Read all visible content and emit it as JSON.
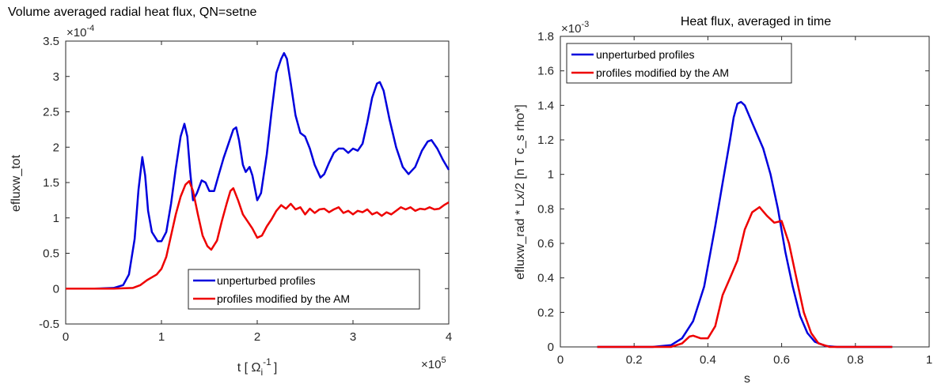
{
  "chart_data": [
    {
      "type": "line",
      "title": "Volume averaged radial heat flux, QN=setne",
      "xlabel": "t [ Ω",
      "xlabel_sub": "i",
      "xlabel_sup": "-1",
      "xlabel_end": "]",
      "ylabel": "efluxw_tot",
      "x_multiplier": {
        "base": "×10",
        "exp": "5"
      },
      "y_multiplier": {
        "base": "×10",
        "exp": "-4"
      },
      "xlim": [
        0,
        4
      ],
      "ylim": [
        -0.5,
        3.5
      ],
      "xticks": [
        0,
        1,
        2,
        3,
        4
      ],
      "xtick_labels": [
        "0",
        "1",
        "2",
        "3",
        "4"
      ],
      "yticks": [
        -0.5,
        0,
        0.5,
        1,
        1.5,
        2,
        2.5,
        3,
        3.5
      ],
      "ytick_labels": [
        "-0.5",
        "0",
        "0.5",
        "1",
        "1.5",
        "2",
        "2.5",
        "3",
        "3.5"
      ],
      "legend_position": "lower-right",
      "series": [
        {
          "name": "unperturbed profiles",
          "color": "#0000dd",
          "points": [
            [
              0,
              0
            ],
            [
              0.3,
              0
            ],
            [
              0.5,
              0.01
            ],
            [
              0.6,
              0.05
            ],
            [
              0.66,
              0.2
            ],
            [
              0.72,
              0.7
            ],
            [
              0.76,
              1.4
            ],
            [
              0.8,
              1.86
            ],
            [
              0.83,
              1.6
            ],
            [
              0.86,
              1.1
            ],
            [
              0.9,
              0.8
            ],
            [
              0.96,
              0.67
            ],
            [
              1.0,
              0.67
            ],
            [
              1.05,
              0.8
            ],
            [
              1.1,
              1.2
            ],
            [
              1.15,
              1.7
            ],
            [
              1.2,
              2.15
            ],
            [
              1.24,
              2.33
            ],
            [
              1.27,
              2.15
            ],
            [
              1.3,
              1.65
            ],
            [
              1.33,
              1.25
            ],
            [
              1.37,
              1.35
            ],
            [
              1.42,
              1.53
            ],
            [
              1.46,
              1.5
            ],
            [
              1.5,
              1.38
            ],
            [
              1.55,
              1.38
            ],
            [
              1.6,
              1.62
            ],
            [
              1.65,
              1.85
            ],
            [
              1.7,
              2.05
            ],
            [
              1.75,
              2.25
            ],
            [
              1.78,
              2.28
            ],
            [
              1.81,
              2.1
            ],
            [
              1.85,
              1.75
            ],
            [
              1.88,
              1.65
            ],
            [
              1.92,
              1.72
            ],
            [
              1.95,
              1.6
            ],
            [
              2.0,
              1.25
            ],
            [
              2.04,
              1.35
            ],
            [
              2.1,
              1.9
            ],
            [
              2.15,
              2.5
            ],
            [
              2.2,
              3.05
            ],
            [
              2.25,
              3.25
            ],
            [
              2.28,
              3.33
            ],
            [
              2.31,
              3.25
            ],
            [
              2.35,
              2.9
            ],
            [
              2.4,
              2.45
            ],
            [
              2.45,
              2.2
            ],
            [
              2.5,
              2.15
            ],
            [
              2.55,
              1.98
            ],
            [
              2.6,
              1.75
            ],
            [
              2.66,
              1.57
            ],
            [
              2.7,
              1.62
            ],
            [
              2.75,
              1.78
            ],
            [
              2.8,
              1.92
            ],
            [
              2.85,
              1.98
            ],
            [
              2.9,
              1.98
            ],
            [
              2.95,
              1.92
            ],
            [
              3.0,
              1.98
            ],
            [
              3.05,
              1.95
            ],
            [
              3.1,
              2.05
            ],
            [
              3.15,
              2.35
            ],
            [
              3.2,
              2.7
            ],
            [
              3.25,
              2.9
            ],
            [
              3.28,
              2.92
            ],
            [
              3.32,
              2.8
            ],
            [
              3.38,
              2.4
            ],
            [
              3.45,
              2.0
            ],
            [
              3.52,
              1.72
            ],
            [
              3.58,
              1.62
            ],
            [
              3.65,
              1.72
            ],
            [
              3.72,
              1.95
            ],
            [
              3.78,
              2.08
            ],
            [
              3.82,
              2.1
            ],
            [
              3.88,
              1.98
            ],
            [
              3.94,
              1.82
            ],
            [
              4.0,
              1.68
            ]
          ]
        },
        {
          "name": "profiles modified by the AM",
          "color": "#ee0000",
          "points": [
            [
              0,
              0
            ],
            [
              0.5,
              0
            ],
            [
              0.7,
              0.01
            ],
            [
              0.78,
              0.05
            ],
            [
              0.85,
              0.12
            ],
            [
              0.9,
              0.16
            ],
            [
              0.95,
              0.2
            ],
            [
              1.0,
              0.28
            ],
            [
              1.05,
              0.45
            ],
            [
              1.1,
              0.75
            ],
            [
              1.15,
              1.05
            ],
            [
              1.2,
              1.3
            ],
            [
              1.25,
              1.47
            ],
            [
              1.29,
              1.52
            ],
            [
              1.33,
              1.38
            ],
            [
              1.38,
              1.05
            ],
            [
              1.43,
              0.75
            ],
            [
              1.48,
              0.6
            ],
            [
              1.52,
              0.55
            ],
            [
              1.58,
              0.68
            ],
            [
              1.63,
              0.95
            ],
            [
              1.68,
              1.2
            ],
            [
              1.72,
              1.38
            ],
            [
              1.75,
              1.42
            ],
            [
              1.8,
              1.25
            ],
            [
              1.85,
              1.05
            ],
            [
              1.9,
              0.95
            ],
            [
              1.95,
              0.85
            ],
            [
              2.0,
              0.72
            ],
            [
              2.05,
              0.75
            ],
            [
              2.1,
              0.88
            ],
            [
              2.15,
              0.98
            ],
            [
              2.2,
              1.1
            ],
            [
              2.25,
              1.18
            ],
            [
              2.3,
              1.13
            ],
            [
              2.35,
              1.2
            ],
            [
              2.4,
              1.12
            ],
            [
              2.45,
              1.15
            ],
            [
              2.5,
              1.05
            ],
            [
              2.55,
              1.13
            ],
            [
              2.6,
              1.07
            ],
            [
              2.65,
              1.12
            ],
            [
              2.7,
              1.13
            ],
            [
              2.75,
              1.08
            ],
            [
              2.8,
              1.12
            ],
            [
              2.85,
              1.15
            ],
            [
              2.9,
              1.07
            ],
            [
              2.95,
              1.1
            ],
            [
              3.0,
              1.05
            ],
            [
              3.05,
              1.1
            ],
            [
              3.1,
              1.08
            ],
            [
              3.15,
              1.12
            ],
            [
              3.2,
              1.05
            ],
            [
              3.25,
              1.08
            ],
            [
              3.3,
              1.03
            ],
            [
              3.35,
              1.08
            ],
            [
              3.4,
              1.05
            ],
            [
              3.45,
              1.1
            ],
            [
              3.5,
              1.15
            ],
            [
              3.55,
              1.12
            ],
            [
              3.6,
              1.15
            ],
            [
              3.65,
              1.1
            ],
            [
              3.7,
              1.13
            ],
            [
              3.75,
              1.12
            ],
            [
              3.8,
              1.15
            ],
            [
              3.85,
              1.12
            ],
            [
              3.9,
              1.13
            ],
            [
              3.95,
              1.18
            ],
            [
              4.0,
              1.22
            ]
          ]
        }
      ]
    },
    {
      "type": "line",
      "title": "Heat flux, averaged in time",
      "xlabel": "s",
      "ylabel": "efluxw_rad * Lx/2 [n T c_s rho*]",
      "y_multiplier": {
        "base": "×10",
        "exp": "-3"
      },
      "xlim": [
        0,
        1
      ],
      "ylim": [
        0,
        1.8
      ],
      "xticks": [
        0,
        0.2,
        0.4,
        0.6,
        0.8,
        1
      ],
      "xtick_labels": [
        "0",
        "0.2",
        "0.4",
        "0.6",
        "0.8",
        "1"
      ],
      "yticks": [
        0,
        0.2,
        0.4,
        0.6,
        0.8,
        1,
        1.2,
        1.4,
        1.6,
        1.8
      ],
      "ytick_labels": [
        "0",
        "0.2",
        "0.4",
        "0.6",
        "0.8",
        "1",
        "1.2",
        "1.4",
        "1.6",
        "1.8"
      ],
      "legend_position": "top-left",
      "series": [
        {
          "name": "unperturbed profiles",
          "color": "#0000dd",
          "points": [
            [
              0.1,
              0
            ],
            [
              0.25,
              0
            ],
            [
              0.3,
              0.01
            ],
            [
              0.33,
              0.05
            ],
            [
              0.36,
              0.15
            ],
            [
              0.39,
              0.35
            ],
            [
              0.42,
              0.7
            ],
            [
              0.44,
              0.95
            ],
            [
              0.46,
              1.2
            ],
            [
              0.47,
              1.33
            ],
            [
              0.48,
              1.41
            ],
            [
              0.49,
              1.42
            ],
            [
              0.5,
              1.4
            ],
            [
              0.52,
              1.3
            ],
            [
              0.55,
              1.15
            ],
            [
              0.57,
              1.0
            ],
            [
              0.59,
              0.8
            ],
            [
              0.61,
              0.55
            ],
            [
              0.63,
              0.35
            ],
            [
              0.65,
              0.18
            ],
            [
              0.67,
              0.08
            ],
            [
              0.69,
              0.03
            ],
            [
              0.72,
              0.005
            ],
            [
              0.75,
              0
            ],
            [
              0.9,
              0
            ]
          ]
        },
        {
          "name": "profiles modified by the AM",
          "color": "#ee0000",
          "points": [
            [
              0.1,
              0
            ],
            [
              0.3,
              0
            ],
            [
              0.33,
              0.02
            ],
            [
              0.35,
              0.06
            ],
            [
              0.36,
              0.065
            ],
            [
              0.38,
              0.05
            ],
            [
              0.4,
              0.05
            ],
            [
              0.42,
              0.12
            ],
            [
              0.44,
              0.3
            ],
            [
              0.46,
              0.4
            ],
            [
              0.48,
              0.5
            ],
            [
              0.5,
              0.68
            ],
            [
              0.52,
              0.78
            ],
            [
              0.54,
              0.81
            ],
            [
              0.56,
              0.76
            ],
            [
              0.58,
              0.72
            ],
            [
              0.6,
              0.73
            ],
            [
              0.62,
              0.6
            ],
            [
              0.64,
              0.4
            ],
            [
              0.66,
              0.2
            ],
            [
              0.68,
              0.08
            ],
            [
              0.7,
              0.02
            ],
            [
              0.73,
              0
            ],
            [
              0.9,
              0
            ]
          ]
        }
      ]
    }
  ]
}
